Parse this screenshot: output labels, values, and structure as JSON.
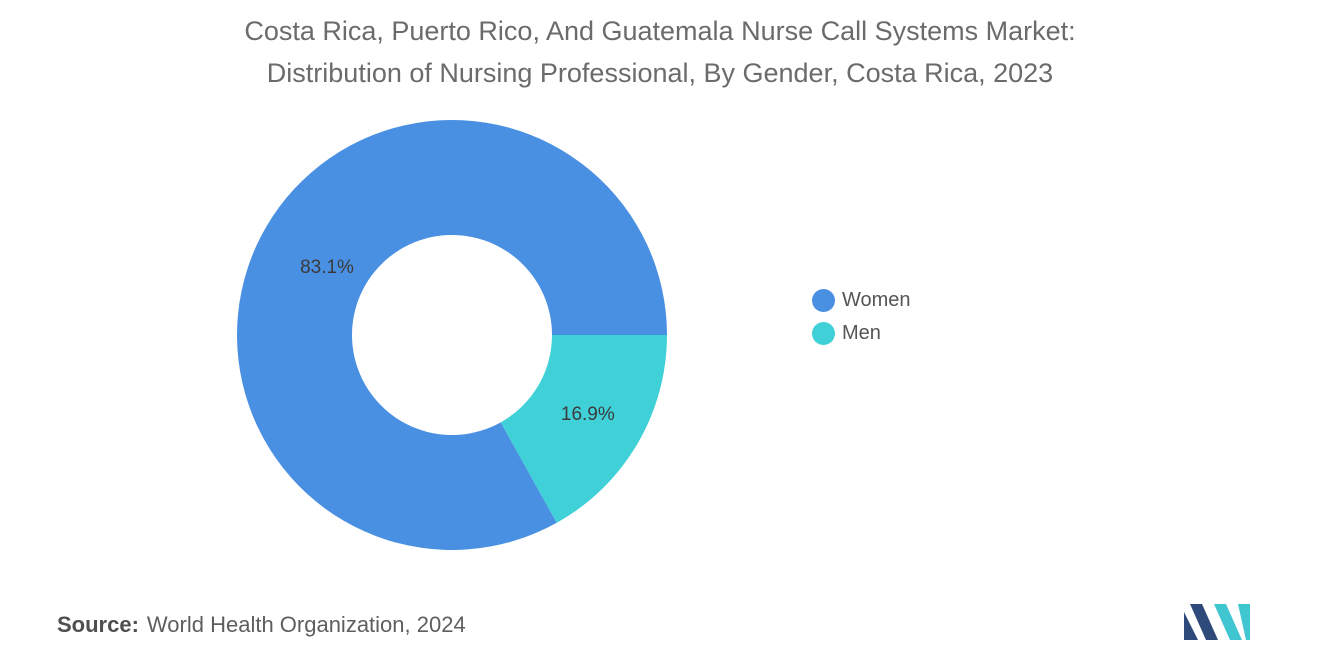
{
  "title": {
    "line1": "Costa Rica, Puerto Rico, And Guatemala Nurse Call Systems Market:",
    "line2": "Distribution of Nursing Professional, By Gender, Costa Rica, 2023"
  },
  "chart_data": {
    "type": "pie",
    "variant": "donut",
    "categories": [
      "Women",
      "Men"
    ],
    "values": [
      83.1,
      16.9
    ],
    "labels": [
      "83.1%",
      "16.9%"
    ],
    "colors": [
      "#4a90e2",
      "#40d0d8"
    ],
    "legend_position": "right"
  },
  "legend": {
    "items": [
      {
        "label": "Women",
        "color": "#4a90e2"
      },
      {
        "label": "Men",
        "color": "#40d0d8"
      }
    ]
  },
  "source": {
    "key": "Source:",
    "text": "World Health Organization, 2024"
  },
  "logo": {
    "icon": "mordor-intelligence-logo-icon",
    "colors": [
      "#2e4a7a",
      "#3fc6d1"
    ]
  }
}
